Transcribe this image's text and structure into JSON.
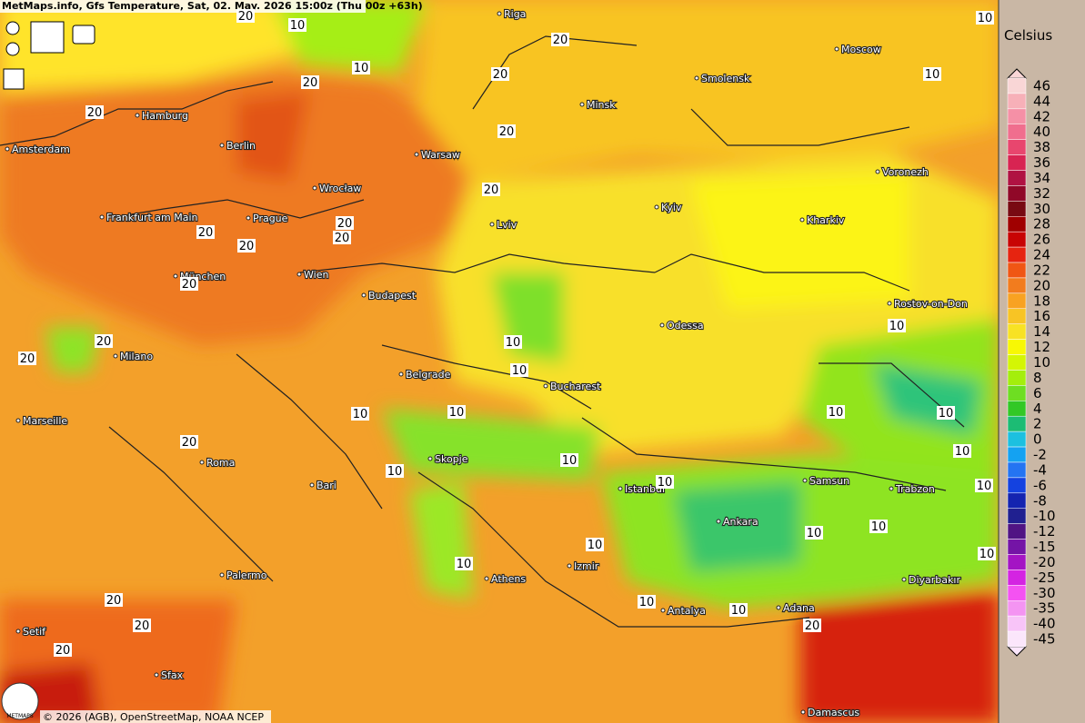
{
  "header": {
    "title": "MetMaps.info, Gfs Temperature, Sat, 02. May. 2026 15:00z (Thu 00z +63h)"
  },
  "cities": [
    "Riga",
    "Moscow",
    "Smolensk",
    "Minsk",
    "Hamburg",
    "Amsterdam",
    "Berlin",
    "Warsaw",
    "Voronezh",
    "Wrocław",
    "Kyiv",
    "Frankfurt am Main",
    "Prague",
    "Lviv",
    "Kharkiv",
    "München",
    "Wien",
    "Budapest",
    "Rostov-on-Don",
    "Odessa",
    "Milano",
    "Belgrade",
    "Bucharest",
    "Marseille",
    "Skopje",
    "Roma",
    "Samsun",
    "Istanbul",
    "Trabzon",
    "Bari",
    "Ankara",
    "Palermo",
    "Izmir",
    "Athens",
    "Diyarbakır",
    "Antalya",
    "Adana",
    "Setif",
    "Sfax",
    "Damascus"
  ],
  "contour_labels": [
    20,
    10,
    10,
    20,
    10,
    20,
    20,
    10,
    20,
    20,
    20,
    20,
    20,
    20,
    20,
    20,
    10,
    20,
    10,
    10,
    20,
    10,
    10,
    10,
    10,
    20,
    10,
    10,
    10,
    10,
    10,
    10,
    10,
    10,
    10,
    10,
    20,
    20,
    10,
    10,
    20,
    20
  ],
  "legend": {
    "title": "Celsius",
    "labels": [
      46,
      44,
      42,
      40,
      38,
      36,
      34,
      32,
      30,
      28,
      26,
      24,
      22,
      20,
      18,
      16,
      14,
      12,
      10,
      8,
      6,
      4,
      2,
      0,
      -2,
      -4,
      -6,
      -8,
      -10,
      -12,
      -15,
      -20,
      -25,
      -30,
      -35,
      -40,
      -45
    ],
    "colors": [
      "#f9d6d6",
      "#f7b0b8",
      "#f590a6",
      "#f06e8e",
      "#e8466e",
      "#d82452",
      "#b01242",
      "#900828",
      "#780a12",
      "#a00000",
      "#c80404",
      "#e62410",
      "#f05614",
      "#f27c1e",
      "#f8a222",
      "#f8c424",
      "#f8e224",
      "#f8f804",
      "#d4f604",
      "#a4ee0c",
      "#6ede22",
      "#32c826",
      "#1cbc74",
      "#1cc0e0",
      "#14a2f2",
      "#2474f2",
      "#1442e0",
      "#1424b0",
      "#202090",
      "#501484",
      "#7414a6",
      "#a414c4",
      "#d424e2",
      "#f452f2",
      "#f494f2",
      "#f8c4f8",
      "#fbe6fb"
    ]
  },
  "footer": {
    "copyright": "© 2026 (AGB), OpenStreetMap, NOAA NCEP",
    "logo": "METMAPS"
  }
}
